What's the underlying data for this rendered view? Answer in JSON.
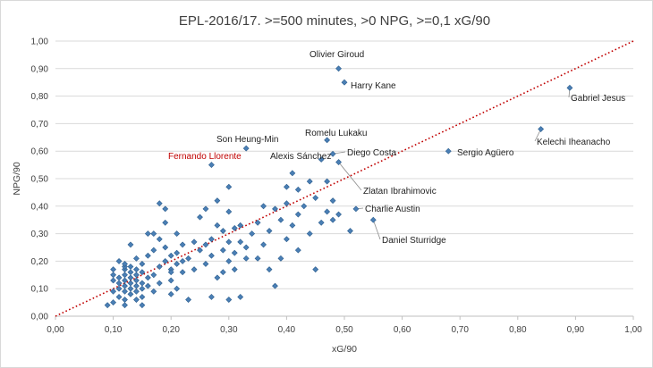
{
  "chart_data": {
    "type": "scatter",
    "title": "EPL-2016/17. >=500 minutes, >0 NPG, >=0,1 xG/90",
    "xlabel": "xG/90",
    "ylabel": "NPG/90",
    "xlim": [
      0,
      1
    ],
    "ylim": [
      0,
      1
    ],
    "x_ticks": [
      "0,00",
      "0,10",
      "0,20",
      "0,30",
      "0,40",
      "0,50",
      "0,60",
      "0,70",
      "0,80",
      "0,90",
      "1,00"
    ],
    "y_ticks": [
      "0,00",
      "0,10",
      "0,20",
      "0,30",
      "0,40",
      "0,50",
      "0,60",
      "0,70",
      "0,80",
      "0,90",
      "1,00"
    ],
    "grid": "horizontal",
    "reference_line": {
      "type": "dotted",
      "from": [
        0,
        0
      ],
      "to": [
        1,
        1
      ],
      "color": "#c00000"
    },
    "labeled_points": [
      {
        "name": "Olivier Giroud",
        "x": 0.49,
        "y": 0.9
      },
      {
        "name": "Harry Kane",
        "x": 0.5,
        "y": 0.85
      },
      {
        "name": "Gabriel Jesus",
        "x": 0.89,
        "y": 0.83
      },
      {
        "name": "Kelechi Iheanacho",
        "x": 0.84,
        "y": 0.68
      },
      {
        "name": "Romelu Lukaku",
        "x": 0.47,
        "y": 0.64
      },
      {
        "name": "Son Heung-Min",
        "x": 0.33,
        "y": 0.61
      },
      {
        "name": "Sergio Agüero",
        "x": 0.68,
        "y": 0.6
      },
      {
        "name": "Diego Costa",
        "x": 0.48,
        "y": 0.59
      },
      {
        "name": "Alexis Sánchez",
        "x": 0.46,
        "y": 0.57
      },
      {
        "name": "Fernando Llorente",
        "x": 0.27,
        "y": 0.55,
        "highlight": true
      },
      {
        "name": "Zlatan Ibrahimovic",
        "x": 0.49,
        "y": 0.56
      },
      {
        "name": "Charlie Austin",
        "x": 0.52,
        "y": 0.39
      },
      {
        "name": "Daniel Sturridge",
        "x": 0.55,
        "y": 0.35
      }
    ],
    "points": [
      [
        0.09,
        0.04
      ],
      [
        0.1,
        0.05
      ],
      [
        0.1,
        0.09
      ],
      [
        0.1,
        0.13
      ],
      [
        0.1,
        0.15
      ],
      [
        0.1,
        0.17
      ],
      [
        0.11,
        0.07
      ],
      [
        0.11,
        0.1
      ],
      [
        0.11,
        0.12
      ],
      [
        0.11,
        0.14
      ],
      [
        0.11,
        0.2
      ],
      [
        0.12,
        0.04
      ],
      [
        0.12,
        0.06
      ],
      [
        0.12,
        0.09
      ],
      [
        0.12,
        0.11
      ],
      [
        0.12,
        0.13
      ],
      [
        0.12,
        0.15
      ],
      [
        0.12,
        0.17
      ],
      [
        0.12,
        0.18
      ],
      [
        0.12,
        0.19
      ],
      [
        0.13,
        0.08
      ],
      [
        0.13,
        0.1
      ],
      [
        0.13,
        0.12
      ],
      [
        0.13,
        0.14
      ],
      [
        0.13,
        0.16
      ],
      [
        0.13,
        0.18
      ],
      [
        0.13,
        0.26
      ],
      [
        0.14,
        0.06
      ],
      [
        0.14,
        0.09
      ],
      [
        0.14,
        0.11
      ],
      [
        0.14,
        0.13
      ],
      [
        0.14,
        0.15
      ],
      [
        0.14,
        0.17
      ],
      [
        0.14,
        0.21
      ],
      [
        0.15,
        0.07
      ],
      [
        0.15,
        0.1
      ],
      [
        0.15,
        0.12
      ],
      [
        0.15,
        0.16
      ],
      [
        0.15,
        0.19
      ],
      [
        0.16,
        0.11
      ],
      [
        0.16,
        0.14
      ],
      [
        0.16,
        0.22
      ],
      [
        0.16,
        0.3
      ],
      [
        0.17,
        0.09
      ],
      [
        0.17,
        0.15
      ],
      [
        0.17,
        0.24
      ],
      [
        0.17,
        0.3
      ],
      [
        0.18,
        0.12
      ],
      [
        0.18,
        0.18
      ],
      [
        0.18,
        0.28
      ],
      [
        0.18,
        0.41
      ],
      [
        0.19,
        0.2
      ],
      [
        0.19,
        0.25
      ],
      [
        0.19,
        0.34
      ],
      [
        0.19,
        0.39
      ],
      [
        0.2,
        0.08
      ],
      [
        0.2,
        0.13
      ],
      [
        0.2,
        0.17
      ],
      [
        0.2,
        0.22
      ],
      [
        0.21,
        0.1
      ],
      [
        0.21,
        0.19
      ],
      [
        0.21,
        0.23
      ],
      [
        0.21,
        0.3
      ],
      [
        0.22,
        0.16
      ],
      [
        0.22,
        0.2
      ],
      [
        0.22,
        0.26
      ],
      [
        0.23,
        0.06
      ],
      [
        0.23,
        0.21
      ],
      [
        0.24,
        0.17
      ],
      [
        0.24,
        0.27
      ],
      [
        0.25,
        0.24
      ],
      [
        0.25,
        0.36
      ],
      [
        0.26,
        0.19
      ],
      [
        0.26,
        0.26
      ],
      [
        0.26,
        0.39
      ],
      [
        0.27,
        0.07
      ],
      [
        0.27,
        0.22
      ],
      [
        0.27,
        0.28
      ],
      [
        0.28,
        0.14
      ],
      [
        0.28,
        0.33
      ],
      [
        0.28,
        0.42
      ],
      [
        0.29,
        0.16
      ],
      [
        0.29,
        0.24
      ],
      [
        0.29,
        0.31
      ],
      [
        0.3,
        0.06
      ],
      [
        0.3,
        0.2
      ],
      [
        0.3,
        0.27
      ],
      [
        0.3,
        0.38
      ],
      [
        0.3,
        0.47
      ],
      [
        0.31,
        0.17
      ],
      [
        0.31,
        0.23
      ],
      [
        0.31,
        0.32
      ],
      [
        0.32,
        0.07
      ],
      [
        0.32,
        0.27
      ],
      [
        0.32,
        0.33
      ],
      [
        0.33,
        0.21
      ],
      [
        0.33,
        0.25
      ],
      [
        0.34,
        0.3
      ],
      [
        0.35,
        0.21
      ],
      [
        0.35,
        0.34
      ],
      [
        0.36,
        0.26
      ],
      [
        0.36,
        0.4
      ],
      [
        0.37,
        0.17
      ],
      [
        0.37,
        0.31
      ],
      [
        0.38,
        0.11
      ],
      [
        0.38,
        0.39
      ],
      [
        0.39,
        0.21
      ],
      [
        0.39,
        0.35
      ],
      [
        0.4,
        0.28
      ],
      [
        0.4,
        0.41
      ],
      [
        0.4,
        0.47
      ],
      [
        0.41,
        0.33
      ],
      [
        0.41,
        0.52
      ],
      [
        0.42,
        0.24
      ],
      [
        0.42,
        0.37
      ],
      [
        0.42,
        0.46
      ],
      [
        0.43,
        0.4
      ],
      [
        0.44,
        0.3
      ],
      [
        0.44,
        0.49
      ],
      [
        0.45,
        0.17
      ],
      [
        0.45,
        0.43
      ],
      [
        0.46,
        0.34
      ],
      [
        0.47,
        0.49
      ],
      [
        0.47,
        0.38
      ],
      [
        0.48,
        0.35
      ],
      [
        0.48,
        0.42
      ],
      [
        0.49,
        0.37
      ],
      [
        0.51,
        0.31
      ],
      [
        0.2,
        0.16
      ],
      [
        0.15,
        0.04
      ]
    ]
  }
}
